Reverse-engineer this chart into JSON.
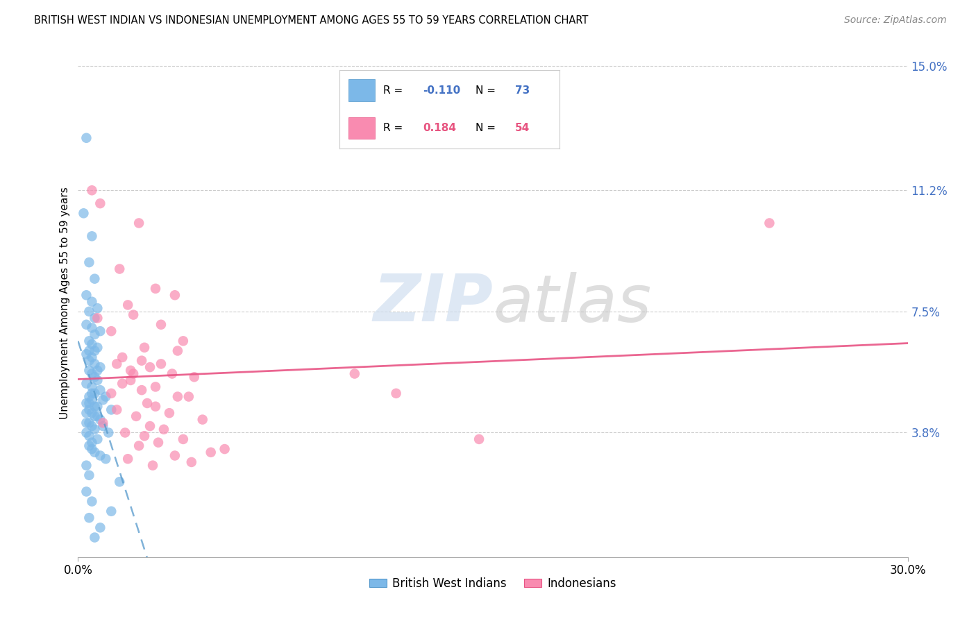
{
  "title": "BRITISH WEST INDIAN VS INDONESIAN UNEMPLOYMENT AMONG AGES 55 TO 59 YEARS CORRELATION CHART",
  "source": "Source: ZipAtlas.com",
  "ylabel_values": [
    3.8,
    7.5,
    11.2,
    15.0
  ],
  "xmin": 0.0,
  "xmax": 30.0,
  "ymin": 0.0,
  "ymax": 15.5,
  "ylabel": "Unemployment Among Ages 55 to 59 years",
  "legend_blue_label": "British West Indians",
  "legend_pink_label": "Indonesians",
  "R_blue": -0.11,
  "N_blue": 73,
  "R_pink": 0.184,
  "N_pink": 54,
  "color_blue": "#7cb8e8",
  "color_pink": "#f98bb0",
  "color_line_blue": "#5599cc",
  "color_line_pink": "#e85585",
  "watermark_zip": "ZIP",
  "watermark_atlas": "atlas",
  "blue_x": [
    0.3,
    0.2,
    0.5,
    0.4,
    0.6,
    0.3,
    0.5,
    0.7,
    0.4,
    0.6,
    0.3,
    0.5,
    0.8,
    0.6,
    0.4,
    0.5,
    0.7,
    0.6,
    0.4,
    0.3,
    0.5,
    0.4,
    0.6,
    0.8,
    0.7,
    0.4,
    0.5,
    0.6,
    0.7,
    0.3,
    0.5,
    0.8,
    0.6,
    0.5,
    0.4,
    1.0,
    0.9,
    0.5,
    0.4,
    0.3,
    0.6,
    0.7,
    0.4,
    1.2,
    0.3,
    0.5,
    0.6,
    0.7,
    0.8,
    0.4,
    0.3,
    0.5,
    0.9,
    0.6,
    0.3,
    1.1,
    0.4,
    0.7,
    0.5,
    0.4,
    0.5,
    0.6,
    0.8,
    1.0,
    0.3,
    0.4,
    1.5,
    0.3,
    0.5,
    1.2,
    0.4,
    0.8,
    0.6
  ],
  "blue_y": [
    12.8,
    10.5,
    9.8,
    9.0,
    8.5,
    8.0,
    7.8,
    7.6,
    7.5,
    7.3,
    7.1,
    7.0,
    6.9,
    6.8,
    6.6,
    6.5,
    6.4,
    6.3,
    6.3,
    6.2,
    6.1,
    6.0,
    5.9,
    5.8,
    5.7,
    5.7,
    5.6,
    5.5,
    5.4,
    5.3,
    5.2,
    5.1,
    5.0,
    5.0,
    4.9,
    4.9,
    4.8,
    4.8,
    4.7,
    4.7,
    4.6,
    4.6,
    4.5,
    4.5,
    4.4,
    4.4,
    4.3,
    4.3,
    4.2,
    4.1,
    4.1,
    4.0,
    4.0,
    3.9,
    3.8,
    3.8,
    3.7,
    3.6,
    3.5,
    3.4,
    3.3,
    3.2,
    3.1,
    3.0,
    2.8,
    2.5,
    2.3,
    2.0,
    1.7,
    1.4,
    1.2,
    0.9,
    0.6
  ],
  "pink_x": [
    0.5,
    0.8,
    2.2,
    1.5,
    2.8,
    3.5,
    1.8,
    2.0,
    0.7,
    3.0,
    1.2,
    3.8,
    2.4,
    3.6,
    1.6,
    2.3,
    1.4,
    3.0,
    2.6,
    1.9,
    2.0,
    3.4,
    4.2,
    1.9,
    1.6,
    2.8,
    2.3,
    1.2,
    3.6,
    4.0,
    2.5,
    2.8,
    1.4,
    3.3,
    2.1,
    4.5,
    0.9,
    2.6,
    3.1,
    1.7,
    2.4,
    3.8,
    2.9,
    2.2,
    5.3,
    4.8,
    3.5,
    1.8,
    4.1,
    2.7,
    25.0,
    14.5,
    11.5,
    10.0
  ],
  "pink_y": [
    11.2,
    10.8,
    10.2,
    8.8,
    8.2,
    8.0,
    7.7,
    7.4,
    7.3,
    7.1,
    6.9,
    6.6,
    6.4,
    6.3,
    6.1,
    6.0,
    5.9,
    5.9,
    5.8,
    5.7,
    5.6,
    5.6,
    5.5,
    5.4,
    5.3,
    5.2,
    5.1,
    5.0,
    4.9,
    4.9,
    4.7,
    4.6,
    4.5,
    4.4,
    4.3,
    4.2,
    4.1,
    4.0,
    3.9,
    3.8,
    3.7,
    3.6,
    3.5,
    3.4,
    3.3,
    3.2,
    3.1,
    3.0,
    2.9,
    2.8,
    10.2,
    3.6,
    5.0,
    5.6
  ]
}
